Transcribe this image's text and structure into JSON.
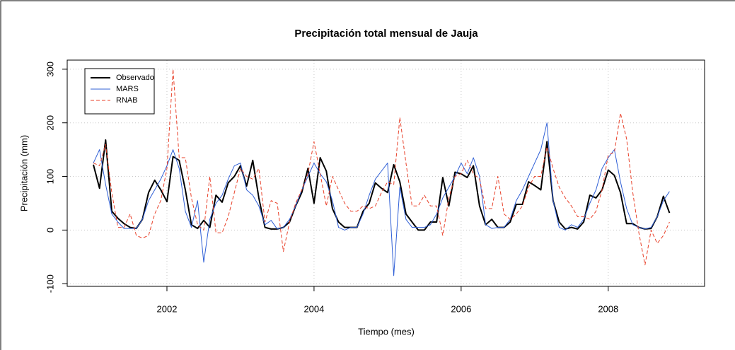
{
  "chart_data": {
    "type": "line",
    "title": "Precipitación total mensual de Jauja",
    "x_label": "Tiempo (mes)",
    "y_label": "Precipitación (mm)",
    "x": [
      2001,
      2001.0833,
      2001.1667,
      2001.25,
      2001.3333,
      2001.4167,
      2001.5,
      2001.5833,
      2001.6667,
      2001.75,
      2001.8333,
      2001.9167,
      2002,
      2002.0833,
      2002.1667,
      2002.25,
      2002.3333,
      2002.4167,
      2002.5,
      2002.5833,
      2002.6667,
      2002.75,
      2002.8333,
      2002.9167,
      2003,
      2003.0833,
      2003.1667,
      2003.25,
      2003.3333,
      2003.4167,
      2003.5,
      2003.5833,
      2003.6667,
      2003.75,
      2003.8333,
      2003.9167,
      2004,
      2004.0833,
      2004.1667,
      2004.25,
      2004.3333,
      2004.4167,
      2004.5,
      2004.5833,
      2004.6667,
      2004.75,
      2004.8333,
      2004.9167,
      2005,
      2005.0833,
      2005.1667,
      2005.25,
      2005.3333,
      2005.4167,
      2005.5,
      2005.5833,
      2005.6667,
      2005.75,
      2005.8333,
      2005.9167,
      2006,
      2006.0833,
      2006.1667,
      2006.25,
      2006.3333,
      2006.4167,
      2006.5,
      2006.5833,
      2006.6667,
      2006.75,
      2006.8333,
      2006.9167,
      2007,
      2007.0833,
      2007.1667,
      2007.25,
      2007.3333,
      2007.4167,
      2007.5,
      2007.5833,
      2007.6667,
      2007.75,
      2007.8333,
      2007.9167,
      2008,
      2008.0833,
      2008.1667,
      2008.25,
      2008.3333,
      2008.4167,
      2008.5,
      2008.5833,
      2008.6667,
      2008.75,
      2008.8333
    ],
    "series": [
      {
        "name": "Observado",
        "color": "#000000",
        "linestyle": "solid",
        "linewidth": 2,
        "values": [
          122,
          78,
          168,
          35,
          22,
          12,
          5,
          3,
          20,
          70,
          93,
          75,
          53,
          137,
          130,
          75,
          10,
          3,
          18,
          5,
          65,
          52,
          88,
          100,
          120,
          82,
          130,
          60,
          5,
          2,
          2,
          5,
          15,
          45,
          70,
          115,
          50,
          135,
          110,
          40,
          15,
          5,
          5,
          5,
          35,
          50,
          88,
          78,
          70,
          122,
          90,
          30,
          15,
          0,
          0,
          15,
          15,
          98,
          45,
          108,
          105,
          98,
          120,
          45,
          10,
          20,
          5,
          5,
          15,
          48,
          48,
          90,
          83,
          75,
          165,
          55,
          15,
          2,
          5,
          2,
          15,
          65,
          60,
          75,
          112,
          102,
          70,
          12,
          12,
          5,
          2,
          3,
          25,
          63,
          32
        ]
      },
      {
        "name": "MARS",
        "color": "#2f5fd6",
        "linestyle": "solid",
        "linewidth": 1,
        "values": [
          125,
          150,
          85,
          30,
          15,
          3,
          3,
          3,
          20,
          55,
          75,
          95,
          120,
          150,
          115,
          35,
          5,
          55,
          -60,
          20,
          50,
          65,
          95,
          120,
          125,
          75,
          65,
          45,
          10,
          18,
          2,
          5,
          20,
          45,
          75,
          100,
          125,
          105,
          90,
          55,
          5,
          0,
          5,
          5,
          30,
          65,
          95,
          110,
          125,
          -85,
          80,
          20,
          5,
          5,
          5,
          10,
          30,
          60,
          80,
          100,
          125,
          105,
          135,
          100,
          10,
          3,
          5,
          5,
          20,
          55,
          75,
          100,
          125,
          150,
          200,
          55,
          5,
          0,
          10,
          5,
          20,
          50,
          75,
          115,
          135,
          150,
          90,
          40,
          10,
          5,
          2,
          5,
          25,
          55,
          72
        ]
      },
      {
        "name": "RNAB",
        "color": "#e8412a",
        "linestyle": "dashed",
        "linewidth": 1,
        "values": [
          125,
          120,
          160,
          70,
          5,
          5,
          30,
          -10,
          -15,
          -10,
          30,
          55,
          115,
          300,
          135,
          135,
          60,
          10,
          0,
          100,
          -5,
          -5,
          25,
          70,
          115,
          100,
          95,
          115,
          15,
          55,
          50,
          -40,
          15,
          50,
          75,
          105,
          165,
          105,
          45,
          100,
          75,
          50,
          35,
          35,
          45,
          40,
          45,
          70,
          90,
          85,
          210,
          125,
          45,
          45,
          65,
          45,
          45,
          -10,
          60,
          100,
          105,
          130,
          105,
          95,
          40,
          40,
          100,
          30,
          20,
          30,
          45,
          80,
          100,
          100,
          155,
          115,
          80,
          60,
          45,
          25,
          25,
          20,
          35,
          75,
          140,
          145,
          218,
          170,
          70,
          -5,
          -65,
          0,
          -25,
          -10,
          15
        ]
      }
    ],
    "xlim": [
      2000.644,
      2009.31
    ],
    "ylim": [
      -105,
      317
    ],
    "xticks": [
      2002,
      2004,
      2006,
      2008
    ],
    "yticks": [
      -100,
      0,
      100,
      200,
      300
    ],
    "grid": true,
    "legend": "top-left"
  }
}
